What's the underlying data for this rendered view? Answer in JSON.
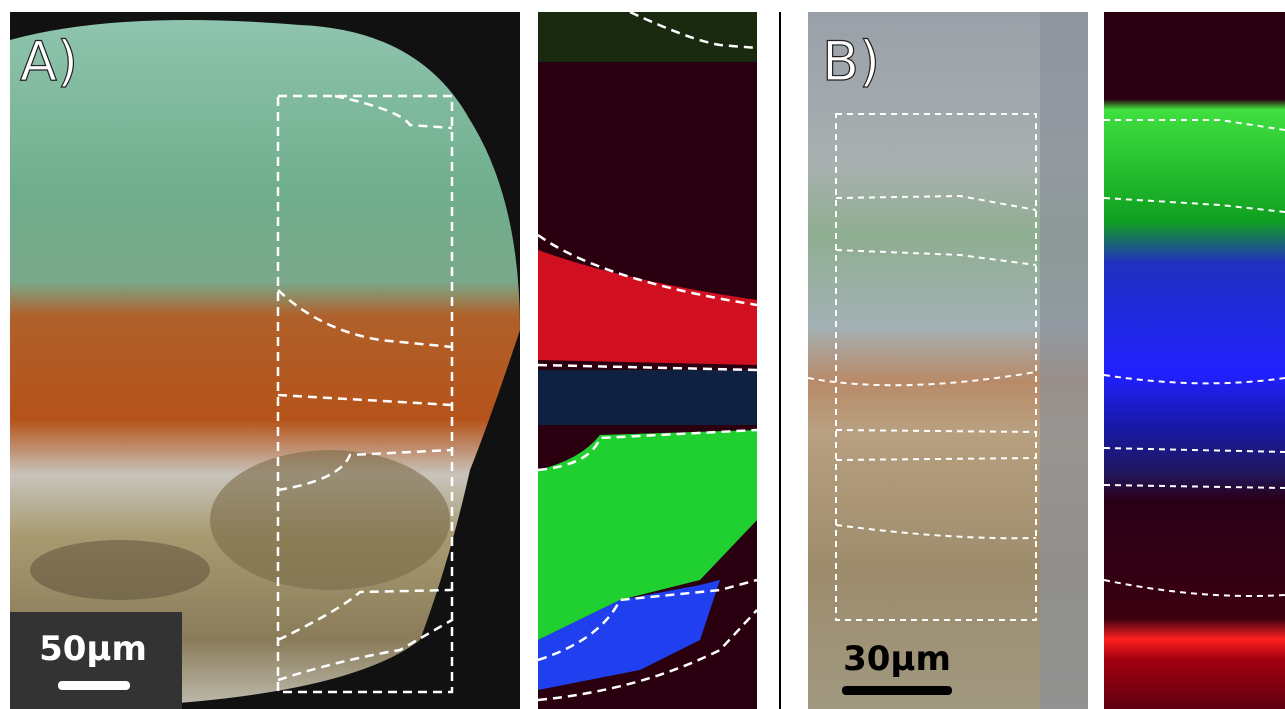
{
  "panels": [
    {
      "label": "A)",
      "scale_bar": "50µm"
    },
    {
      "label": "B)",
      "scale_bar": "30µm"
    }
  ]
}
